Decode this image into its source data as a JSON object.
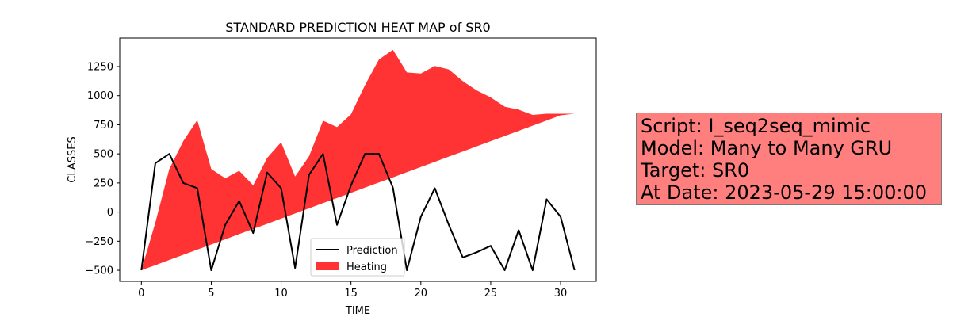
{
  "chart_data": {
    "type": "line",
    "title": "STANDARD PREDICTION HEAT MAP of SR0",
    "xlabel": "TIME",
    "ylabel": "CLASSES",
    "xlim": [
      -1.55,
      32.55
    ],
    "ylim": [
      -595,
      1495
    ],
    "xticks": [
      0,
      5,
      10,
      15,
      20,
      25,
      30
    ],
    "yticks": [
      -500,
      -250,
      0,
      250,
      500,
      750,
      1000,
      1250
    ],
    "legend_position": "lower center",
    "grid": false,
    "series": [
      {
        "name": "Prediction",
        "color": "#000000",
        "x": [
          0,
          1,
          2,
          3,
          4,
          5,
          6,
          7,
          8,
          9,
          10,
          11,
          12,
          13,
          14,
          15,
          16,
          17,
          18,
          19,
          20,
          21,
          22,
          23,
          24,
          25,
          26,
          27,
          28,
          29,
          30,
          31
        ],
        "y": [
          -500,
          420,
          500,
          250,
          205,
          -500,
          -110,
          95,
          -180,
          340,
          205,
          -480,
          320,
          500,
          -110,
          230,
          500,
          500,
          210,
          -500,
          -40,
          205,
          -110,
          -390,
          -345,
          -290,
          -500,
          -155,
          -500,
          110,
          -40,
          -500
        ]
      }
    ],
    "areas": [
      {
        "name": "Heating",
        "color": "#ff0000",
        "opacity": 0.8,
        "x": [
          0,
          1,
          2,
          3,
          4,
          5,
          6,
          7,
          8,
          9,
          10,
          11,
          12,
          13,
          14,
          15,
          16,
          17,
          18,
          19,
          20,
          21,
          22,
          23,
          24,
          25,
          26,
          27,
          28,
          29,
          30,
          31
        ],
        "upper": [
          -500,
          -90,
          370,
          610,
          790,
          370,
          290,
          355,
          230,
          465,
          600,
          305,
          480,
          785,
          730,
          840,
          1090,
          1310,
          1395,
          1200,
          1190,
          1255,
          1225,
          1125,
          1045,
          985,
          905,
          880,
          835,
          845,
          845,
          845
        ],
        "lower": [
          -500,
          -456,
          -411,
          -367,
          -323,
          -278,
          -234,
          -189,
          -145,
          -101,
          -56,
          -12,
          32,
          77,
          121,
          165,
          210,
          254,
          298,
          343,
          387,
          431,
          476,
          520,
          565,
          609,
          653,
          698,
          742,
          786,
          831,
          845
        ]
      }
    ]
  },
  "info_box": {
    "lines": [
      "Script: I_seq2seq_mimic",
      "Model: Many to Many GRU",
      "Target: SR0",
      "At Date: 2023-05-29 15:00:00"
    ],
    "background": "#ff7f7f"
  }
}
